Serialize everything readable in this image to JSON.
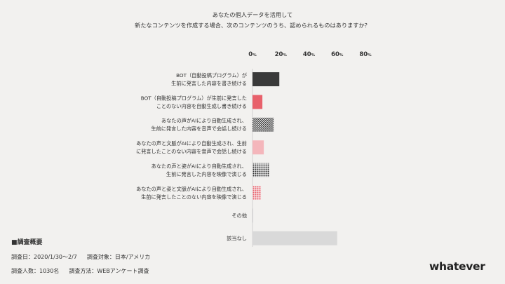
{
  "question": {
    "line1": "あなたの個人データを活用して",
    "line2": "新たなコンテンツを作成する場合、次のコンテンツのうち、認められるものはありますか？"
  },
  "chart_data": {
    "type": "bar",
    "orientation": "horizontal",
    "xlim": [
      0,
      80
    ],
    "ticks": [
      {
        "value": 0,
        "label": "0",
        "unit": "%"
      },
      {
        "value": 20,
        "label": "20",
        "unit": "%"
      },
      {
        "value": 40,
        "label": "40",
        "unit": "%"
      },
      {
        "value": 60,
        "label": "60",
        "unit": "%"
      },
      {
        "value": 80,
        "label": "80",
        "unit": "%"
      }
    ],
    "grid": false,
    "categories": [
      {
        "lines": [
          "BOT（自動投稿プログラム）が",
          "生前に発言した内容を書き続ける"
        ],
        "value": 19,
        "fill": "solid",
        "color": "#3a3a3a"
      },
      {
        "lines": [
          "BOT（自動投稿プログラム）が生前に発言した",
          "ことのない内容を自動生成し書き続ける"
        ],
        "value": 7,
        "fill": "solid",
        "color": "#e8616b"
      },
      {
        "lines": [
          "あなたの声がAIにより自動生成され、",
          "生前に発言した内容を音声で会話し続ける"
        ],
        "value": 15,
        "fill": "checker",
        "color": "#3a3a3a"
      },
      {
        "lines": [
          "あなたの声と文脈がAIにより自動生成され、生前",
          "に発言したことのない内容を音声で会話し続ける"
        ],
        "value": 8,
        "fill": "solid",
        "color": "#f4b6bb"
      },
      {
        "lines": [
          "あなたの声と姿がAIにより自動生成され、",
          "生前に発言した内容を映像で演じる"
        ],
        "value": 12,
        "fill": "dots",
        "color": "#3a3a3a"
      },
      {
        "lines": [
          "あなたの声と姿と文脈がAIにより自動生成され、",
          "生前に発言したことのない内容を映像で演じる"
        ],
        "value": 6,
        "fill": "dots",
        "color": "#e8616b"
      },
      {
        "lines": [
          "その他"
        ],
        "value": 0.5,
        "fill": "solid",
        "color": "#cfcfcf"
      },
      {
        "lines": [
          "該当なし"
        ],
        "value": 60,
        "fill": "solid",
        "color": "#d9d9d9"
      }
    ]
  },
  "survey": {
    "title": "■調査概要",
    "date": "調査日：2020/1/30～2/7",
    "target": "調査対象：日本/アメリカ",
    "count": "調査人数：1030名",
    "method": "調査方法：WEBアンケート調査"
  },
  "brand": {
    "logo": "whatever"
  }
}
